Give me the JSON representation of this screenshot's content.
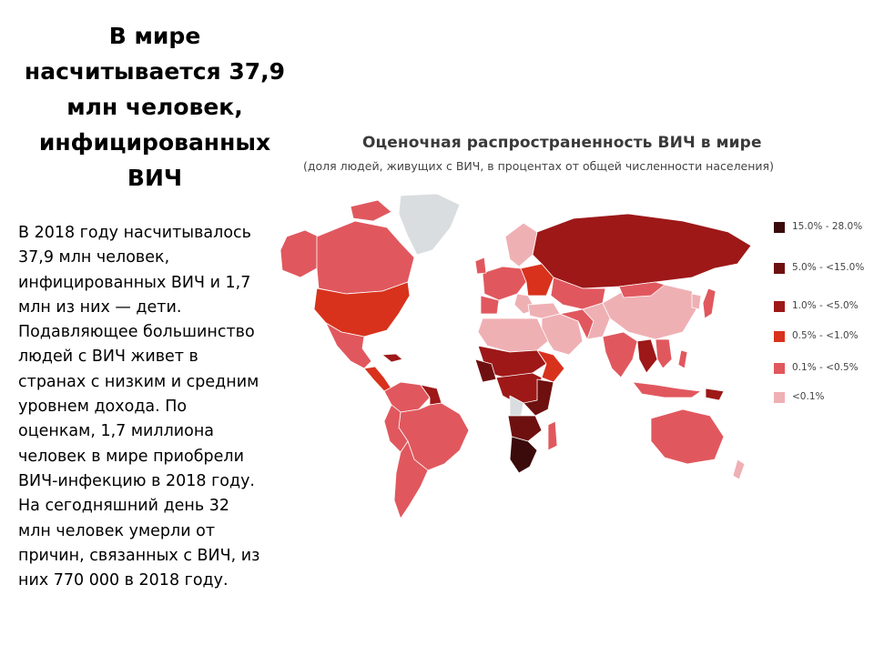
{
  "title_lines": [
    "В мире",
    "насчитывается 37,9",
    "млн человек,",
    "инфицированных",
    "ВИЧ"
  ],
  "body_lines": [
    "В 2018 году насчитывалось",
    "37,9 млн человек,",
    "инфицированных ВИЧ и 1,7",
    "млн из них — дети.",
    "Подавляющее большинство",
    "людей с ВИЧ живет в",
    "странах с низким и средним",
    "уровнем дохода. По",
    "оценкам, 1,7 миллиона",
    "человек в мире приобрели",
    "ВИЧ-инфекцию в 2018 году.",
    "На сегодняшний день 32",
    "млн человек умерли от",
    "причин, связанных с ВИЧ, из",
    "них 770 000 в 2018 году."
  ],
  "map": {
    "title": "Оценочная распространенность ВИЧ в мире",
    "subtitle": "(доля людей, живущих с ВИЧ,  в процентах от общей численности населения)",
    "legend": [
      {
        "label": "15.0% - 28.0%",
        "color": "#3b0a0a"
      },
      {
        "label": "5.0% - <15.0%",
        "color": "#6e1010"
      },
      {
        "label": "1.0% - <5.0%",
        "color": "#9e1818"
      },
      {
        "label": "0.5% - <1.0%",
        "color": "#d8321c"
      },
      {
        "label": "0.1% - <0.5%",
        "color": "#e0585e"
      },
      {
        "label": "<0.1%",
        "color": "#efb0b4"
      }
    ],
    "colors": {
      "no_data": "#d9dde0",
      "ocean": "#ffffff"
    }
  }
}
